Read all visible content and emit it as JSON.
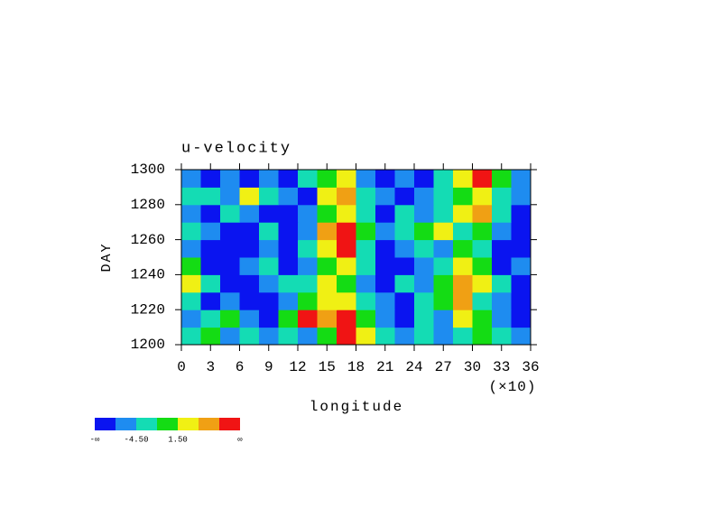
{
  "chart_data": {
    "type": "heatmap",
    "title": "u-velocity",
    "xlabel": "longitude",
    "ylabel": "DAY",
    "x_multiplier": "(×10)",
    "xlim": [
      0,
      36
    ],
    "xticks": [
      0,
      3,
      6,
      9,
      12,
      15,
      18,
      21,
      24,
      27,
      30,
      33,
      36
    ],
    "ylim": [
      1200,
      1300
    ],
    "yticks": [
      1200,
      1220,
      1240,
      1260,
      1280,
      1300
    ],
    "xbins": [
      0,
      2,
      4,
      6,
      8,
      10,
      12,
      14,
      16,
      18,
      20,
      22,
      24,
      26,
      28,
      30,
      32,
      34,
      36
    ],
    "ybins": [
      1200,
      1210,
      1220,
      1230,
      1240,
      1250,
      1260,
      1270,
      1280,
      1290,
      1300
    ],
    "z": [
      [
        -3,
        0,
        -6,
        -3,
        -6,
        -3,
        -6,
        0,
        9,
        3,
        -3,
        -6,
        -3,
        -6,
        -3,
        0,
        -3,
        -6
      ],
      [
        -6,
        -3,
        0,
        -6,
        -9,
        0,
        9,
        6,
        9,
        0,
        -6,
        -9,
        -3,
        -6,
        3,
        0,
        -6,
        -9
      ],
      [
        -3,
        -9,
        -6,
        -9,
        -9,
        -6,
        0,
        3,
        3,
        -3,
        -6,
        -9,
        -3,
        0,
        6,
        -3,
        -6,
        -9
      ],
      [
        3,
        -3,
        -9,
        -9,
        -6,
        -3,
        -3,
        3,
        0,
        -6,
        -9,
        -3,
        -6,
        0,
        6,
        3,
        -3,
        -9
      ],
      [
        0,
        -9,
        -9,
        -6,
        -3,
        -9,
        -6,
        0,
        3,
        -3,
        -9,
        -9,
        -6,
        -3,
        3,
        0,
        -9,
        -6
      ],
      [
        -6,
        -9,
        -9,
        -9,
        -6,
        -9,
        -3,
        3,
        9,
        -3,
        -9,
        -6,
        -3,
        -6,
        0,
        -3,
        -9,
        -9
      ],
      [
        -3,
        -6,
        -9,
        -9,
        -3,
        -9,
        -6,
        6,
        9,
        0,
        -6,
        -3,
        0,
        3,
        -3,
        0,
        -6,
        -9
      ],
      [
        -6,
        -9,
        -3,
        -6,
        -9,
        -9,
        -6,
        0,
        3,
        -3,
        -9,
        -3,
        -6,
        -3,
        3,
        6,
        -3,
        -9
      ],
      [
        -3,
        -3,
        -6,
        3,
        -3,
        -6,
        -9,
        3,
        6,
        -3,
        -6,
        -9,
        -6,
        -3,
        0,
        3,
        -3,
        -6
      ],
      [
        -6,
        -9,
        -6,
        -9,
        -6,
        -9,
        -3,
        0,
        3,
        -6,
        -9,
        -6,
        -9,
        -3,
        3,
        9,
        0,
        -6
      ]
    ],
    "colorbar": {
      "colors": [
        "#0a14f0",
        "#1e8cf0",
        "#14dcb4",
        "#14dc14",
        "#f0f014",
        "#f0a014",
        "#f01414"
      ],
      "levels": [
        -7.5,
        -4.5,
        -1.5,
        1.5,
        4.5,
        7.5
      ],
      "labels": [
        {
          "value": -4.5,
          "label": "-4.50"
        },
        {
          "value": 1.5,
          "label": "1.50"
        }
      ],
      "low_label": "-∞",
      "high_label": "∞"
    }
  }
}
